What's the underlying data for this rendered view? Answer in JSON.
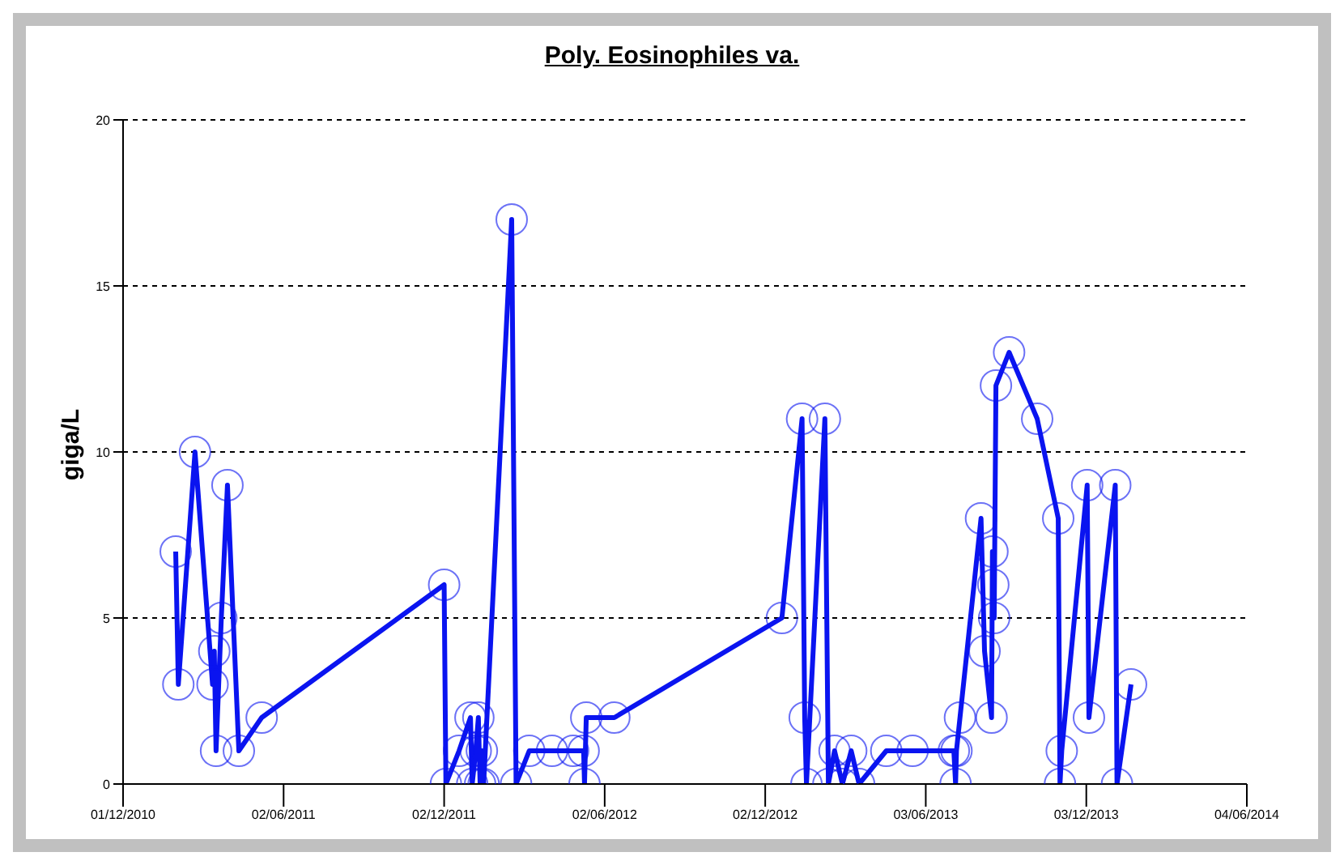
{
  "chart_data": {
    "type": "line",
    "title": "Poly. Eosinophiles va.",
    "ylabel": "giga/L",
    "x": [
      "2011-01-30",
      "2011-02-02",
      "2011-02-21",
      "2011-03-13",
      "2011-03-15",
      "2011-03-17",
      "2011-03-23",
      "2011-03-30",
      "2011-04-12",
      "2011-05-08",
      "2011-12-02",
      "2011-12-04",
      "2011-12-19",
      "2012-01-01",
      "2012-01-03",
      "2012-01-07",
      "2012-01-10",
      "2012-01-12",
      "2012-01-14",
      "2012-01-16",
      "2012-02-17",
      "2012-02-22",
      "2012-03-08",
      "2012-04-03",
      "2012-04-27",
      "2012-05-09",
      "2012-05-10",
      "2012-05-12",
      "2012-06-13",
      "2012-12-21",
      "2013-01-13",
      "2013-01-16",
      "2013-01-18",
      "2013-02-08",
      "2013-02-12",
      "2013-02-19",
      "2013-02-28",
      "2013-03-10",
      "2013-03-19",
      "2013-04-19",
      "2013-05-19",
      "2013-07-05",
      "2013-07-07",
      "2013-07-08",
      "2013-07-12",
      "2013-08-05",
      "2013-08-09",
      "2013-08-17",
      "2013-08-18",
      "2013-08-19",
      "2013-08-20",
      "2013-08-22",
      "2013-09-06",
      "2013-10-08",
      "2013-11-01",
      "2013-11-03",
      "2013-11-05",
      "2013-12-04",
      "2013-12-06",
      "2014-01-05",
      "2014-01-07",
      "2014-01-23"
    ],
    "series": [
      {
        "color": "#0a14f0",
        "values": [
          7,
          3,
          10,
          3,
          4,
          1,
          5,
          9,
          1,
          2,
          6,
          0,
          1,
          2,
          0,
          1,
          2,
          0,
          1,
          0,
          17,
          0,
          1,
          1,
          1,
          1,
          0,
          2,
          2,
          5,
          11,
          2,
          0,
          11,
          0,
          1,
          0,
          1,
          0,
          1,
          1,
          1,
          0,
          1,
          2,
          8,
          4,
          2,
          7,
          6,
          5,
          12,
          13,
          11,
          8,
          0,
          1,
          9,
          2,
          9,
          0,
          3
        ]
      }
    ],
    "xlim": [
      "2010-12-01",
      "2014-06-04"
    ],
    "xticks": [
      {
        "value": "2010-12-01",
        "label": "01/12/2010"
      },
      {
        "value": "2011-06-02",
        "label": "02/06/2011"
      },
      {
        "value": "2011-12-02",
        "label": "02/12/2011"
      },
      {
        "value": "2012-06-02",
        "label": "02/06/2012"
      },
      {
        "value": "2012-12-02",
        "label": "02/12/2012"
      },
      {
        "value": "2013-06-03",
        "label": "03/06/2013"
      },
      {
        "value": "2013-12-03",
        "label": "03/12/2013"
      },
      {
        "value": "2014-06-04",
        "label": "04/06/2014"
      }
    ],
    "ylim": [
      0,
      20
    ],
    "yticks": [
      0,
      5,
      10,
      15,
      20
    ],
    "grid": "y",
    "marker": "circle",
    "line_style": "solid"
  }
}
